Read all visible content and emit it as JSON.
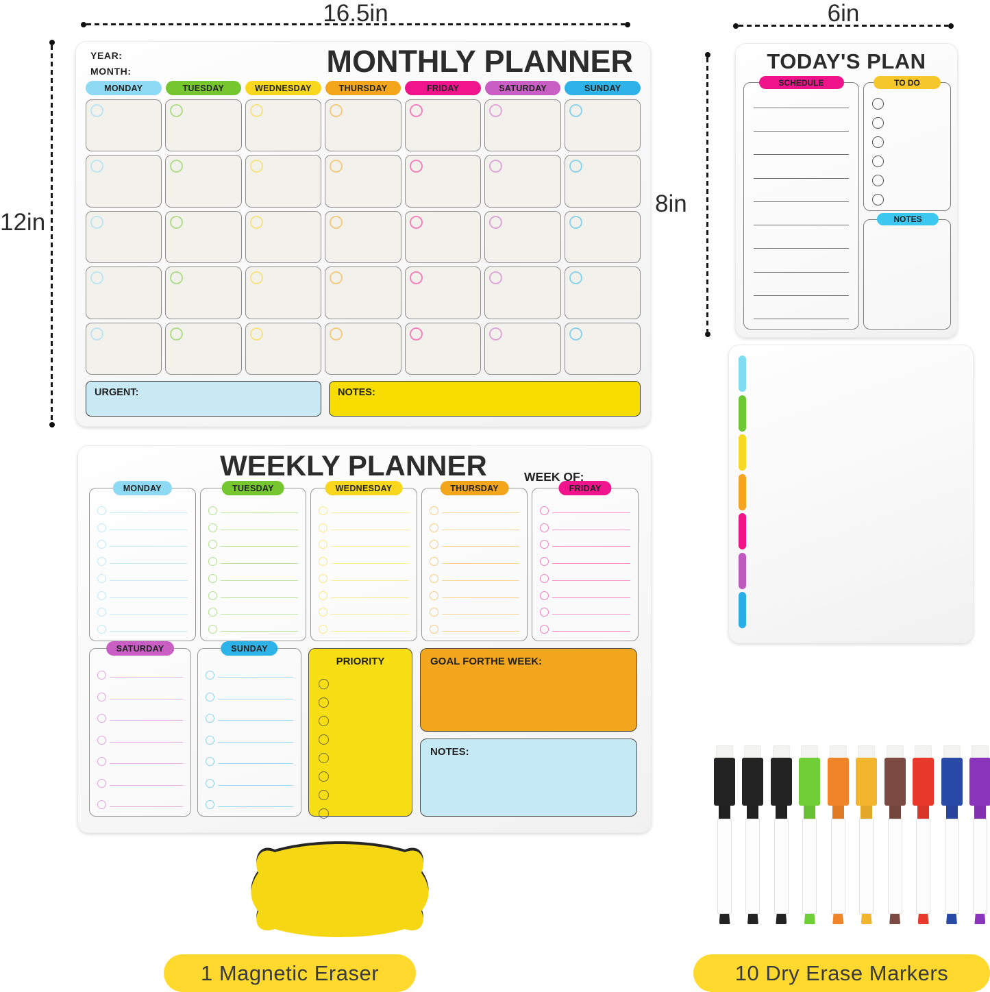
{
  "dims": {
    "monthly_width": "16.5in",
    "monthly_height": "12in",
    "today_width": "6in",
    "today_height": "8in"
  },
  "monthly": {
    "year_label": "YEAR:",
    "month_label": "MONTH:",
    "title": "MONTHLY PLANNER",
    "grid_rows": 5,
    "days": [
      {
        "label": "MONDAY",
        "color": "#8EDAF4"
      },
      {
        "label": "TUESDAY",
        "color": "#76C72F"
      },
      {
        "label": "WEDNESDAY",
        "color": "#F8D71E"
      },
      {
        "label": "THURSDAY",
        "color": "#F3A51B"
      },
      {
        "label": "FRIDAY",
        "color": "#F0158C"
      },
      {
        "label": "SATURDAY",
        "color": "#C95FC5"
      },
      {
        "label": "SUNDAY",
        "color": "#2EB3E8"
      }
    ],
    "urgent": {
      "label": "URGENT:",
      "color": "#C9EAF5"
    },
    "notes": {
      "label": "NOTES:",
      "color": "#F8DD00"
    }
  },
  "weekly": {
    "title": "WEEKLY PLANNER",
    "week_of_label": "WEEK OF:",
    "top_days": [
      {
        "label": "MONDAY",
        "color": "#8EDAF4",
        "rows": 8
      },
      {
        "label": "TUESDAY",
        "color": "#76C72F",
        "rows": 8
      },
      {
        "label": "WEDNESDAY",
        "color": "#F8D71E",
        "rows": 8
      },
      {
        "label": "THURSDAY",
        "color": "#F3A51B",
        "rows": 8
      },
      {
        "label": "FRIDAY",
        "color": "#F0158C",
        "rows": 8
      }
    ],
    "bottom_days": [
      {
        "label": "SATURDAY",
        "color": "#C95FC5",
        "rows": 7
      },
      {
        "label": "SUNDAY",
        "color": "#2EB3E8",
        "rows": 7
      }
    ],
    "priority": {
      "label": "PRIORITY",
      "color": "#F8DE14",
      "circles": 8
    },
    "goal": {
      "label": "GOAL FORTHE WEEK:",
      "color": "#F2A71E"
    },
    "notes": {
      "label": "NOTES:",
      "color": "#C6E9F6"
    }
  },
  "today": {
    "title": "TODAY'S PLAN",
    "schedule": {
      "label": "SCHEDULE",
      "color": "#F0148C",
      "lines": 10
    },
    "todo": {
      "label": "TO DO",
      "color": "#F6C72B",
      "circles": 6
    },
    "notes": {
      "label": "NOTES",
      "color": "#3BC7EF"
    }
  },
  "blank_board": {
    "tab_colors": [
      "#7FDCF2",
      "#6CC832",
      "#F7D823",
      "#F5A41E",
      "#F01487",
      "#BE5ABE",
      "#29AEE6"
    ]
  },
  "eraser": {
    "caption": "1 Magnetic Eraser",
    "body_color": "#F6D714",
    "shadow_color": "#262626"
  },
  "markers": {
    "caption": "10 Dry Erase Markers",
    "colors": [
      "#232323",
      "#232323",
      "#232323",
      "#70CE36",
      "#F08428",
      "#F2B52D",
      "#7B4A42",
      "#E8392C",
      "#2A4AA8",
      "#8B35BD"
    ]
  },
  "ui": {
    "caption_bg": "#FFD92E"
  }
}
